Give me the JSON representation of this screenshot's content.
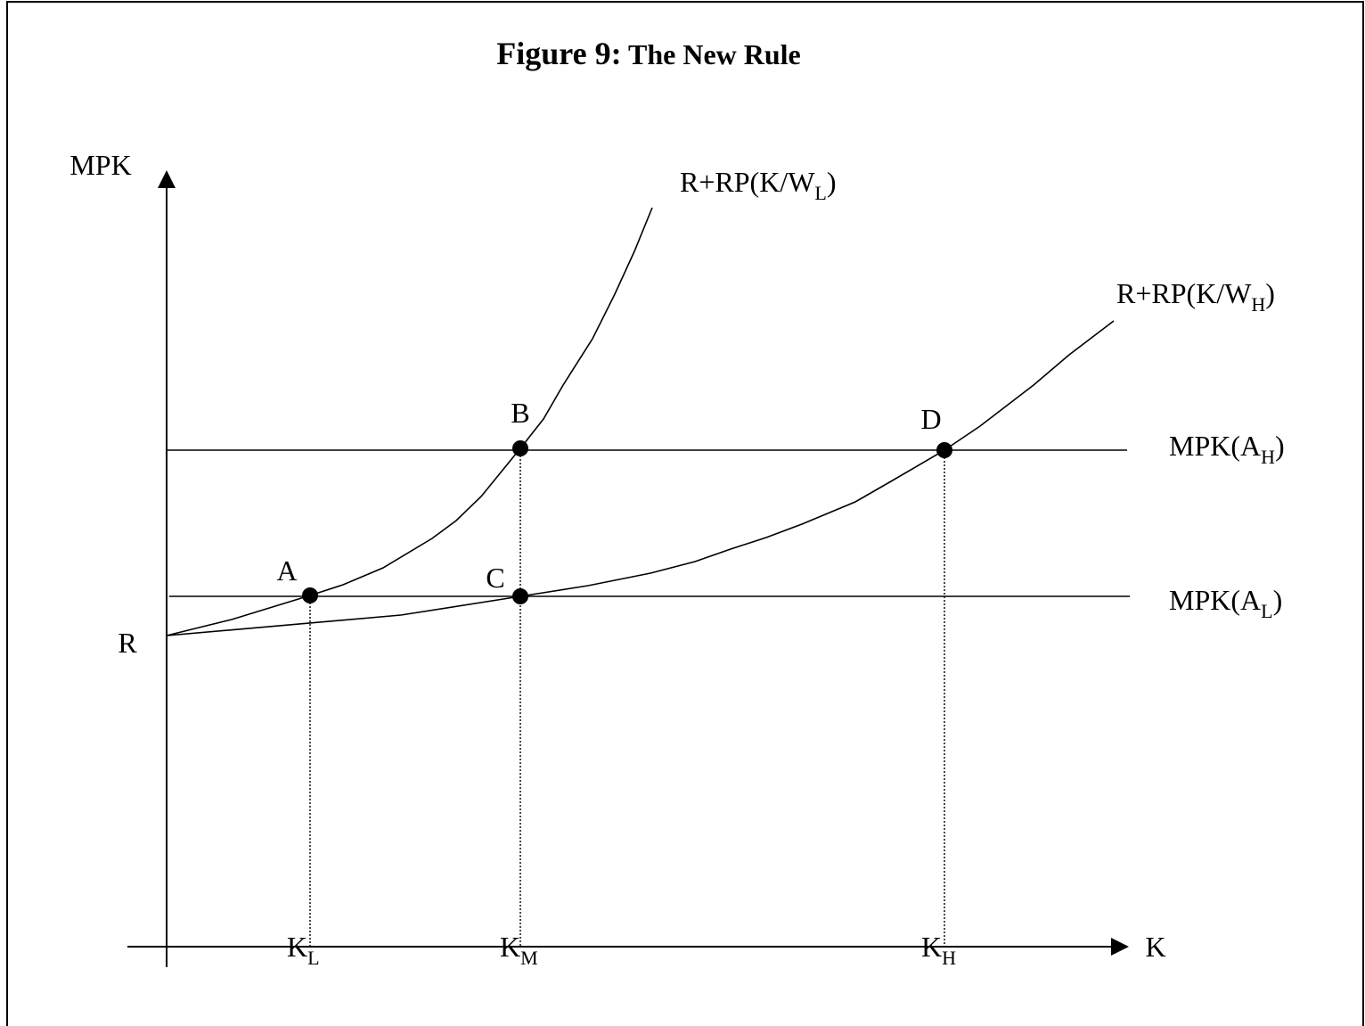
{
  "title": {
    "number": "Figure 9:",
    "text": "The New Rule"
  },
  "y_axis": {
    "label": "MPK",
    "origin_label": "R"
  },
  "x_axis": {
    "label": "K",
    "ticks": [
      {
        "base": "K",
        "sub": "L"
      },
      {
        "base": "K",
        "sub": "M"
      },
      {
        "base": "K",
        "sub": "H"
      }
    ]
  },
  "curves": [
    {
      "base": "R+RP(K/W",
      "sub": "L",
      "tail": ")"
    },
    {
      "base": "R+RP(K/W",
      "sub": "H",
      "tail": ")"
    }
  ],
  "lines": [
    {
      "base": "MPK(A",
      "sub": "H",
      "tail": ")"
    },
    {
      "base": "MPK(A",
      "sub": "L",
      "tail": ")"
    }
  ],
  "points": [
    "A",
    "B",
    "C",
    "D"
  ]
}
